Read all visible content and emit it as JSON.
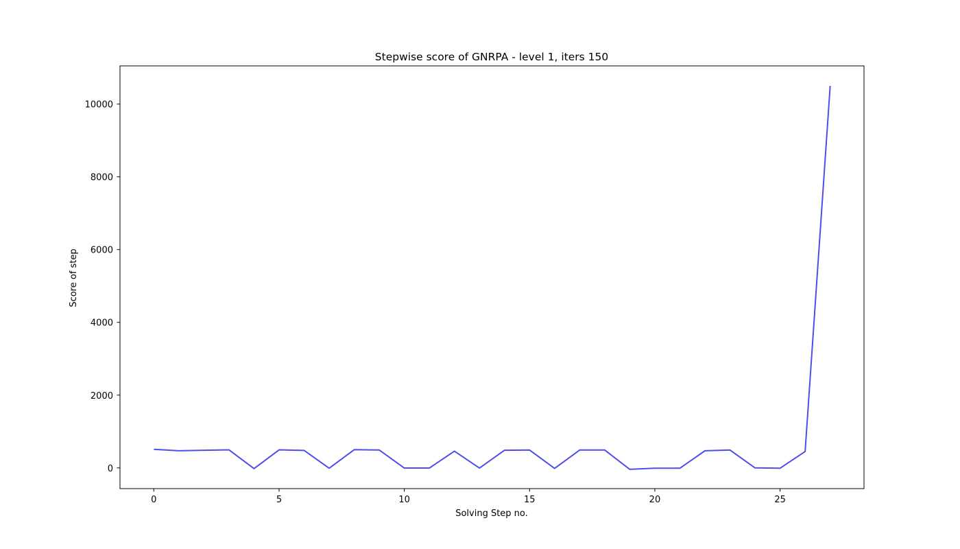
{
  "chart_data": {
    "type": "line",
    "title": "Stepwise score of GNRPA - level 1, iters 150",
    "xlabel": "Solving Step no.",
    "ylabel": "Score of step",
    "xlim": [
      -1.35,
      28.35
    ],
    "ylim": [
      -570,
      11050
    ],
    "xticks": [
      0,
      5,
      10,
      15,
      20,
      25
    ],
    "yticks": [
      0,
      2000,
      4000,
      6000,
      8000,
      10000
    ],
    "grid": false,
    "legend": "none",
    "series": [
      {
        "color": "#4c4cf0",
        "x": [
          0,
          1,
          2,
          3,
          4,
          5,
          6,
          7,
          8,
          9,
          10,
          11,
          12,
          13,
          14,
          15,
          16,
          17,
          18,
          19,
          20,
          21,
          22,
          23,
          24,
          25,
          26,
          27
        ],
        "y": [
          510,
          470,
          485,
          495,
          -20,
          495,
          480,
          -10,
          500,
          490,
          -5,
          -5,
          460,
          -5,
          485,
          490,
          -15,
          490,
          490,
          -40,
          -10,
          -10,
          470,
          490,
          0,
          -10,
          450,
          10500
        ]
      }
    ]
  }
}
